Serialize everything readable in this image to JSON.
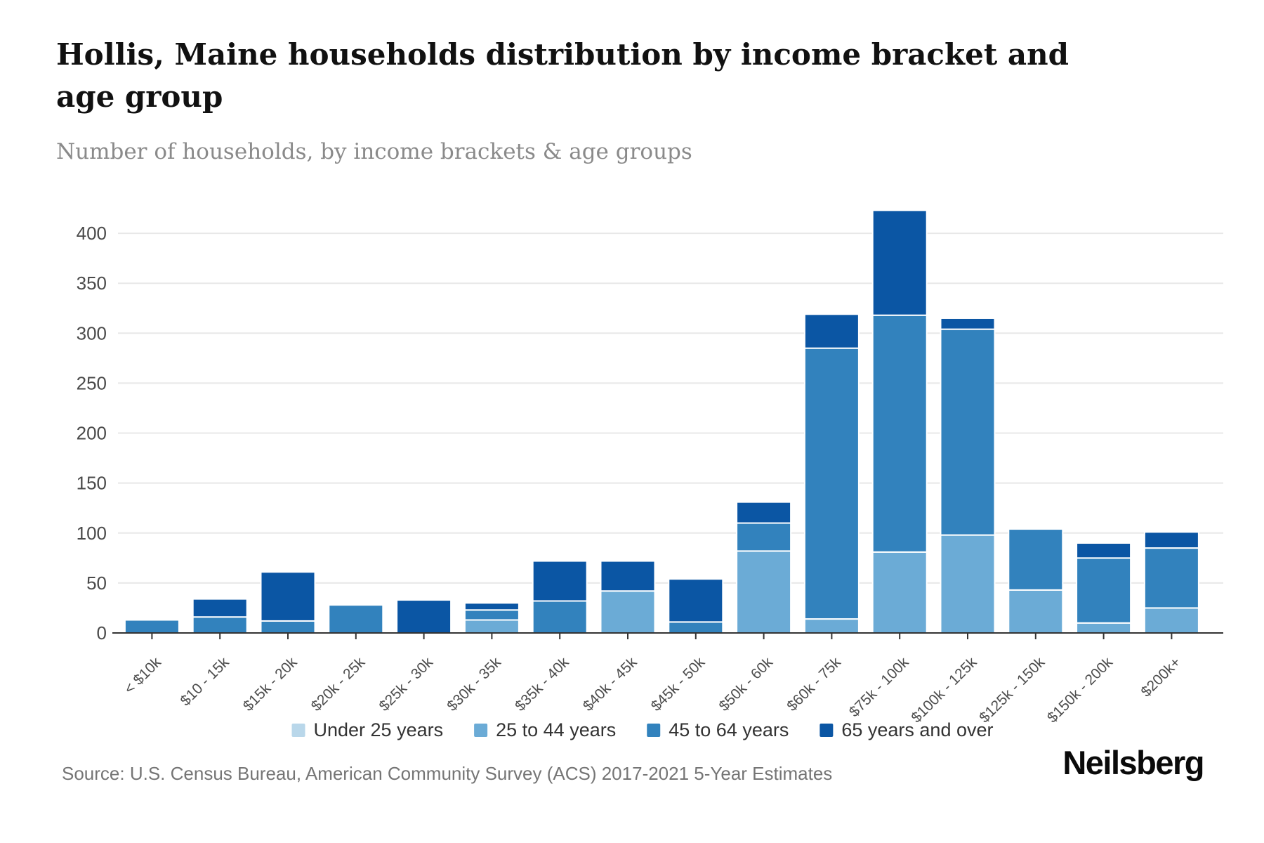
{
  "header": {
    "title": "Hollis, Maine households distribution by income bracket and age group",
    "subtitle": "Number of households, by income brackets & age groups"
  },
  "footer": {
    "source": "Source: U.S. Census Bureau, American Community Survey (ACS) 2017-2021 5-Year Estimates",
    "logo_text": "Neilsberg"
  },
  "chart_data": {
    "type": "bar",
    "stacked": true,
    "title": "Hollis, Maine households distribution by income bracket and age group",
    "subtitle": "Number of households, by income brackets & age groups",
    "xlabel": "",
    "ylabel": "",
    "ylim": [
      0,
      430
    ],
    "yticks": [
      0,
      50,
      100,
      150,
      200,
      250,
      300,
      350,
      400
    ],
    "grid": true,
    "legend_position": "bottom",
    "categories": [
      "< $10k",
      "$10 - 15k",
      "$15k - 20k",
      "$20k - 25k",
      "$25k - 30k",
      "$30k - 35k",
      "$35k - 40k",
      "$40k - 45k",
      "$45k - 50k",
      "$50k - 60k",
      "$60k - 75k",
      "$75k - 100k",
      "$100k - 125k",
      "$125k - 150k",
      "$150k - 200k",
      "$200k+"
    ],
    "series": [
      {
        "name": "Under 25 years",
        "color": "#b9d7ea",
        "values": [
          0,
          0,
          0,
          0,
          0,
          0,
          0,
          0,
          0,
          0,
          0,
          0,
          0,
          0,
          0,
          0
        ]
      },
      {
        "name": "25 to 44 years",
        "color": "#6babd6",
        "values": [
          0,
          0,
          0,
          0,
          0,
          13,
          0,
          42,
          0,
          82,
          14,
          81,
          98,
          43,
          10,
          25
        ]
      },
      {
        "name": "45 to 64 years",
        "color": "#3282bd",
        "values": [
          13,
          16,
          12,
          28,
          0,
          10,
          32,
          0,
          11,
          28,
          271,
          237,
          206,
          61,
          65,
          60
        ]
      },
      {
        "name": "65 years and over",
        "color": "#0b56a4",
        "values": [
          0,
          18,
          49,
          0,
          33,
          7,
          40,
          30,
          43,
          21,
          34,
          105,
          11,
          0,
          15,
          16
        ]
      }
    ],
    "totals": [
      13,
      34,
      61,
      28,
      33,
      30,
      72,
      72,
      54,
      131,
      319,
      423,
      315,
      104,
      90,
      101
    ],
    "colors": {
      "gridline": "#e8e8e8",
      "axis_line": "#333333",
      "y_label": "#4a4a4a",
      "x_label": "#4d4d4d",
      "legend_text": "#333333"
    }
  }
}
